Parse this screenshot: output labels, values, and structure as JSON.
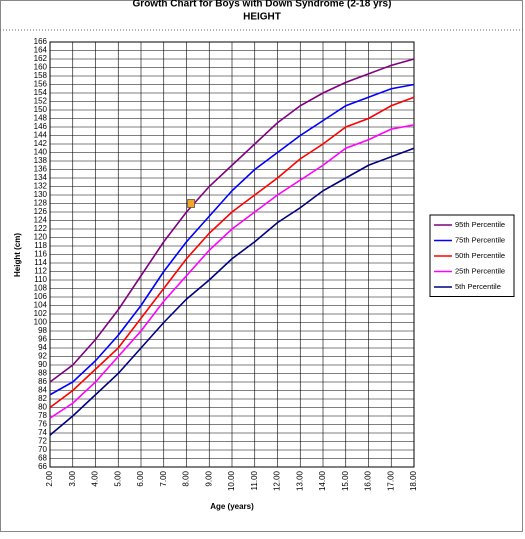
{
  "chart_data": {
    "type": "line",
    "title": "Growth Chart for Boys with Down Syndrome (2-18 yrs)",
    "subtitle": "HEIGHT",
    "y_label": "Height (cm)",
    "x_label": "Age (years)",
    "x": [
      2,
      3,
      4,
      5,
      6,
      7,
      8,
      9,
      10,
      11,
      12,
      13,
      14,
      15,
      16,
      17,
      18
    ],
    "xlim": [
      2,
      18
    ],
    "xticks": [
      {
        "value": 2,
        "label": "2.00"
      },
      {
        "value": 3,
        "label": "3.00"
      },
      {
        "value": 4,
        "label": "4.00"
      },
      {
        "value": 5,
        "label": "5.00"
      },
      {
        "value": 6,
        "label": "6.00"
      },
      {
        "value": 7,
        "label": "7.00"
      },
      {
        "value": 8,
        "label": "8.00"
      },
      {
        "value": 9,
        "label": "9.00"
      },
      {
        "value": 10,
        "label": "10.00"
      },
      {
        "value": 11,
        "label": "11.00"
      },
      {
        "value": 12,
        "label": "12.00"
      },
      {
        "value": 13,
        "label": "13.00"
      },
      {
        "value": 14,
        "label": "14.00"
      },
      {
        "value": 15,
        "label": "15.00"
      },
      {
        "value": 16,
        "label": "16.00"
      },
      {
        "value": 17,
        "label": "17.00"
      },
      {
        "value": 18,
        "label": "18.00"
      }
    ],
    "ylim": [
      66,
      166
    ],
    "yticks": [
      66,
      68,
      70,
      72,
      74,
      76,
      78,
      80,
      82,
      84,
      86,
      88,
      90,
      92,
      94,
      96,
      98,
      100,
      102,
      104,
      106,
      108,
      110,
      112,
      114,
      116,
      118,
      120,
      122,
      124,
      126,
      128,
      130,
      132,
      134,
      136,
      138,
      140,
      142,
      144,
      146,
      148,
      150,
      152,
      154,
      156,
      158,
      160,
      162,
      164,
      166
    ],
    "grid": true,
    "legend": "right",
    "series": [
      {
        "name": "95th Percentile",
        "color": "#800080",
        "values": [
          86,
          90,
          96,
          103,
          111,
          119,
          126,
          132,
          137,
          142,
          147,
          151,
          154,
          156.5,
          158.5,
          160.5,
          162
        ]
      },
      {
        "name": "75th Percentile",
        "color": "#0000ff",
        "values": [
          83,
          86,
          91,
          97,
          104,
          112,
          119,
          125,
          131,
          136,
          140,
          144,
          147.5,
          151,
          153,
          155,
          156
        ]
      },
      {
        "name": "50th Percentile",
        "color": "#ff0000",
        "values": [
          80,
          84,
          89,
          94,
          101,
          108,
          115,
          121,
          126,
          130,
          134,
          138.5,
          142,
          146,
          148,
          151,
          153
        ]
      },
      {
        "name": "25th Percentile",
        "color": "#ff00ff",
        "values": [
          77.5,
          81,
          86,
          92,
          98,
          105,
          111,
          117,
          122,
          126,
          130,
          133.5,
          137,
          141,
          143,
          145.5,
          146.5
        ]
      },
      {
        "name": "5th Percentile",
        "color": "#000080",
        "values": [
          73.5,
          78,
          83,
          88,
          94,
          100,
          105.5,
          110,
          115,
          119,
          123.5,
          127,
          131,
          134,
          137,
          139,
          141
        ]
      }
    ],
    "marker": {
      "x": 8.2,
      "y": 128,
      "color": "#f5a623"
    }
  }
}
